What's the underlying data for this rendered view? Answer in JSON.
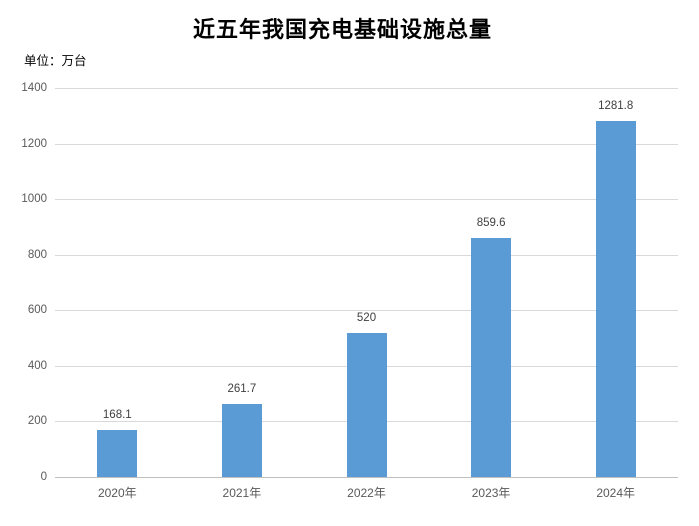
{
  "colors": {
    "bar": "#5b9bd5",
    "gridline": "#d9d9d9",
    "axis": "#bfbfbf",
    "tick_label": "#595959",
    "data_label": "#404040",
    "title": "#000000"
  },
  "chart_data": {
    "type": "bar",
    "title": "近五年我国充电基础设施总量",
    "ylabel": "单位：万台",
    "xlabel": "",
    "categories": [
      "2020年",
      "2021年",
      "2022年",
      "2023年",
      "2024年"
    ],
    "values": [
      168.1,
      261.7,
      520,
      859.6,
      1281.8
    ],
    "data_labels": [
      "168.1",
      "261.7",
      "520",
      "859.6",
      "1281.8"
    ],
    "ylim": [
      0,
      1400
    ],
    "yticks": [
      0,
      200,
      400,
      600,
      800,
      1000,
      1200,
      1400
    ],
    "grid": true,
    "legend": false
  }
}
